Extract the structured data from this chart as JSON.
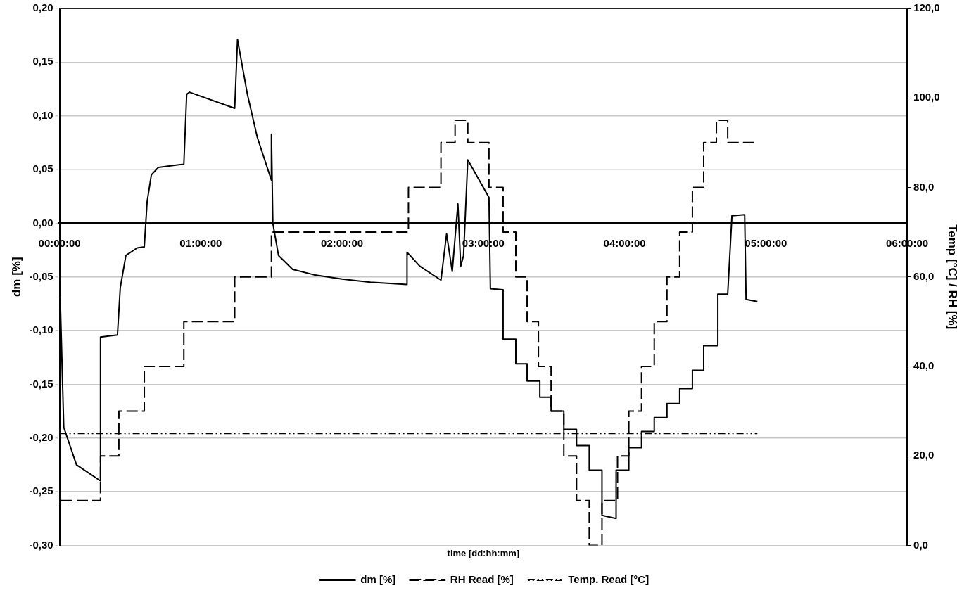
{
  "chart_data": {
    "type": "line",
    "xlabel": "time [dd:hh:mm]",
    "ylabel": "dm [%]",
    "y2label": "Temp [°C] / RH [%]",
    "xlim": [
      0,
      6
    ],
    "xticks": [
      {
        "value": 0,
        "label": "00:00:00"
      },
      {
        "value": 1,
        "label": "01:00:00"
      },
      {
        "value": 2,
        "label": "02:00:00"
      },
      {
        "value": 3,
        "label": "03:00:00"
      },
      {
        "value": 4,
        "label": "04:00:00"
      },
      {
        "value": 5,
        "label": "05:00:00"
      },
      {
        "value": 6,
        "label": "06:00:00"
      }
    ],
    "ylim": [
      -0.3,
      0.2
    ],
    "yticks": [
      {
        "value": -0.3,
        "label": "-0,30"
      },
      {
        "value": -0.25,
        "label": "-0,25"
      },
      {
        "value": -0.2,
        "label": "-0,20"
      },
      {
        "value": -0.15,
        "label": "-0,15"
      },
      {
        "value": -0.1,
        "label": "-0,10"
      },
      {
        "value": -0.05,
        "label": "-0,05"
      },
      {
        "value": 0,
        "label": "0,00"
      },
      {
        "value": 0.05,
        "label": "0,05"
      },
      {
        "value": 0.1,
        "label": "0,10"
      },
      {
        "value": 0.15,
        "label": "0,15"
      },
      {
        "value": 0.2,
        "label": "0,20"
      }
    ],
    "y2lim": [
      0,
      120
    ],
    "y2ticks": [
      {
        "value": 0,
        "label": "0,0"
      },
      {
        "value": 20,
        "label": "20,0"
      },
      {
        "value": 40,
        "label": "40,0"
      },
      {
        "value": 60,
        "label": "60,0"
      },
      {
        "value": 80,
        "label": "80,0"
      },
      {
        "value": 100,
        "label": "100,0"
      },
      {
        "value": 120,
        "label": "120,0"
      }
    ],
    "grid": "y",
    "legend": "bottom",
    "marker": "none",
    "series": [
      {
        "name": "dm [%]",
        "type": "line",
        "color": "#000000",
        "line_style": "solid",
        "x": [
          0,
          0.005,
          0.03,
          0.12,
          0.29,
          0.29,
          0.41,
          0.43,
          0.47,
          0.55,
          0.6,
          0.62,
          0.65,
          0.7,
          0.88,
          0.9,
          0.92,
          1.24,
          1.26,
          1.33,
          1.4,
          1.5,
          1.5,
          1.51,
          1.55,
          1.65,
          1.8,
          2.0,
          2.2,
          2.46,
          2.46,
          2.55,
          2.7,
          2.74,
          2.78,
          2.82,
          2.84,
          2.86,
          2.89,
          2.95,
          3.04,
          3.05,
          3.14,
          3.14,
          3.23,
          3.23,
          3.31,
          3.31,
          3.4,
          3.4,
          3.48,
          3.48,
          3.57,
          3.57,
          3.66,
          3.66,
          3.75,
          3.75,
          3.84,
          3.84,
          3.94,
          3.94,
          4.03,
          4.03,
          4.12,
          4.12,
          4.21,
          4.21,
          4.3,
          4.3,
          4.39,
          4.39,
          4.48,
          4.48,
          4.56,
          4.56,
          4.66,
          4.66,
          4.73,
          4.76,
          4.85,
          4.86,
          4.94
        ],
        "values": [
          -0.28,
          -0.07,
          -0.19,
          -0.225,
          -0.24,
          -0.106,
          -0.104,
          -0.06,
          -0.03,
          -0.023,
          -0.022,
          0.02,
          0.045,
          0.052,
          0.055,
          0.12,
          0.122,
          0.107,
          0.171,
          0.12,
          0.08,
          0.04,
          0.083,
          0.0,
          -0.03,
          -0.043,
          -0.048,
          -0.052,
          -0.055,
          -0.057,
          -0.027,
          -0.04,
          -0.053,
          -0.01,
          -0.045,
          0.018,
          -0.04,
          -0.03,
          0.059,
          0.045,
          0.024,
          -0.061,
          -0.062,
          -0.108,
          -0.108,
          -0.131,
          -0.131,
          -0.147,
          -0.147,
          -0.162,
          -0.162,
          -0.175,
          -0.175,
          -0.192,
          -0.192,
          -0.207,
          -0.207,
          -0.23,
          -0.23,
          -0.272,
          -0.275,
          -0.23,
          -0.23,
          -0.209,
          -0.209,
          -0.194,
          -0.194,
          -0.181,
          -0.181,
          -0.168,
          -0.168,
          -0.154,
          -0.154,
          -0.137,
          -0.137,
          -0.114,
          -0.114,
          -0.066,
          -0.066,
          0.007,
          0.008,
          -0.071,
          -0.073
        ]
      },
      {
        "name": "RH Read [%]",
        "type": "step",
        "axis": "y2",
        "color": "#000000",
        "line_style": "dashed",
        "x": [
          0,
          0.29,
          0.42,
          0.6,
          0.88,
          1.24,
          1.5,
          2.47,
          2.7,
          2.8,
          2.89,
          3.04,
          3.14,
          3.23,
          3.31,
          3.39,
          3.48,
          3.57,
          3.66,
          3.75,
          3.84,
          3.95,
          4.03,
          4.12,
          4.21,
          4.3,
          4.39,
          4.48,
          4.56,
          4.65,
          4.73,
          4.86,
          4.94
        ],
        "values": [
          0,
          10,
          20,
          30,
          40,
          50,
          60,
          70,
          80,
          90,
          95,
          90,
          80,
          70,
          60,
          50,
          40,
          30,
          20,
          10,
          0,
          10,
          20,
          30,
          40,
          50,
          60,
          70,
          80,
          90,
          95,
          90,
          90
        ]
      },
      {
        "name": "Temp. Read [°C]",
        "type": "line",
        "axis": "y2",
        "color": "#000000",
        "line_style": "dotted",
        "x": [
          0,
          4.94
        ],
        "values": [
          25,
          25
        ]
      }
    ]
  }
}
